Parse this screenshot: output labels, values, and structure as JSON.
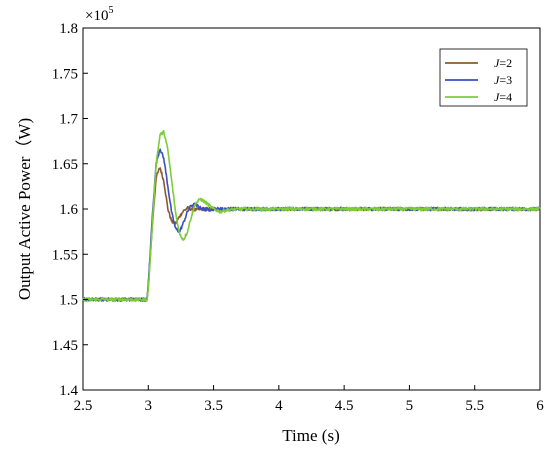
{
  "chart_data": {
    "type": "line",
    "xlabel": "Time (s)",
    "ylabel": "Output Active Power（W)",
    "y_multiplier": "×10",
    "y_multiplier_exp": "5",
    "xlim": [
      2.5,
      6
    ],
    "ylim": [
      1.4,
      1.8
    ],
    "x_ticks": [
      2.5,
      3,
      3.5,
      4,
      4.5,
      5,
      5.5,
      6
    ],
    "x_tick_labels": [
      "2.5",
      "3",
      "3.5",
      "4",
      "4.5",
      "5",
      "5.5",
      "6"
    ],
    "y_ticks": [
      1.4,
      1.45,
      1.5,
      1.55,
      1.6,
      1.65,
      1.7,
      1.75,
      1.8
    ],
    "y_tick_labels": [
      "1.4",
      "1.45",
      "1.5",
      "1.55",
      "1.6",
      "1.65",
      "1.7",
      "1.75",
      "1.8"
    ],
    "grid": false,
    "legend_position": "top-right",
    "noise_amplitude": 0.0018,
    "series": [
      {
        "name": "J=2",
        "legend_prefix": "J",
        "legend_suffix": "=2",
        "color": "#8b5a2b",
        "x": [
          2.5,
          2.99,
          3.0,
          3.03,
          3.06,
          3.09,
          3.12,
          3.15,
          3.18,
          3.21,
          3.24,
          3.27,
          3.3,
          3.33,
          3.36,
          3.4,
          3.45,
          3.5,
          3.6,
          4.0,
          6.0
        ],
        "y": [
          1.5,
          1.5,
          1.515,
          1.58,
          1.635,
          1.646,
          1.63,
          1.6,
          1.586,
          1.584,
          1.592,
          1.598,
          1.601,
          1.6,
          1.599,
          1.6,
          1.6,
          1.6,
          1.6,
          1.6,
          1.6
        ]
      },
      {
        "name": "J=3",
        "legend_prefix": "J",
        "legend_suffix": "=3",
        "color": "#3a4fc4",
        "x": [
          2.5,
          2.99,
          3.0,
          3.03,
          3.06,
          3.09,
          3.12,
          3.15,
          3.18,
          3.21,
          3.24,
          3.27,
          3.3,
          3.33,
          3.36,
          3.4,
          3.45,
          3.5,
          3.6,
          4.0,
          6.0
        ],
        "y": [
          1.5,
          1.5,
          1.515,
          1.59,
          1.65,
          1.667,
          1.655,
          1.625,
          1.595,
          1.578,
          1.575,
          1.585,
          1.597,
          1.604,
          1.605,
          1.601,
          1.599,
          1.6,
          1.6,
          1.6,
          1.6
        ]
      },
      {
        "name": "J=4",
        "legend_prefix": "J",
        "legend_suffix": "=4",
        "color": "#7dcc3a",
        "x": [
          2.5,
          2.99,
          3.0,
          3.03,
          3.06,
          3.09,
          3.12,
          3.15,
          3.18,
          3.21,
          3.24,
          3.27,
          3.3,
          3.33,
          3.36,
          3.4,
          3.45,
          3.5,
          3.55,
          3.6,
          3.7,
          4.0,
          6.0
        ],
        "y": [
          1.5,
          1.5,
          1.51,
          1.58,
          1.65,
          1.682,
          1.685,
          1.665,
          1.63,
          1.595,
          1.572,
          1.566,
          1.575,
          1.592,
          1.606,
          1.611,
          1.606,
          1.6,
          1.597,
          1.599,
          1.6,
          1.6,
          1.6
        ]
      }
    ]
  }
}
